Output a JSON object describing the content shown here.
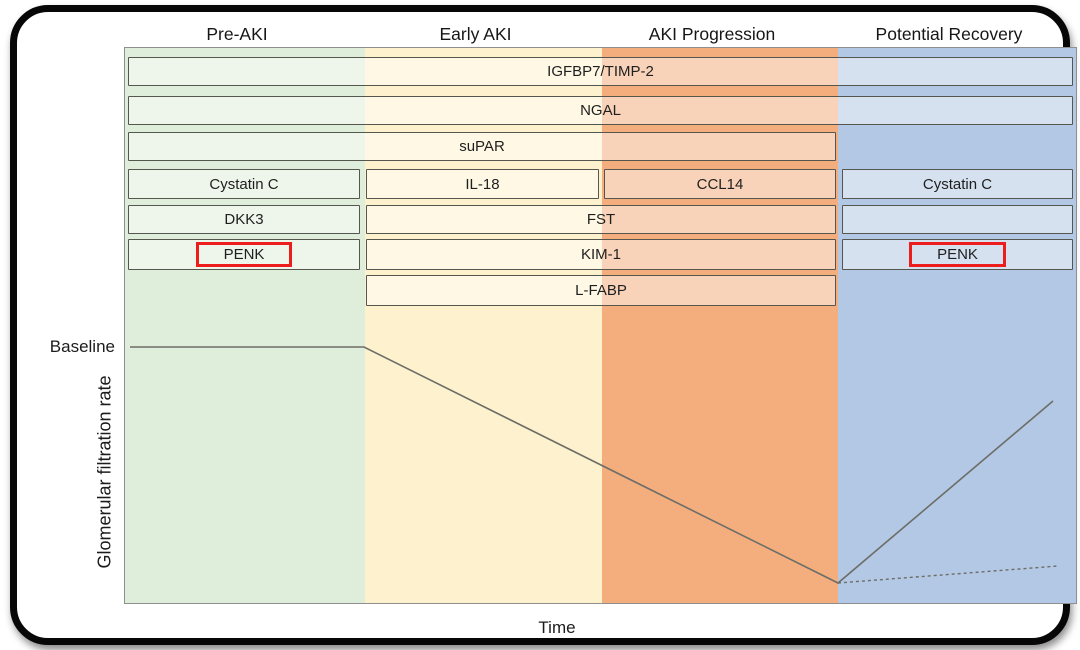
{
  "figure": {
    "phases": [
      {
        "label": "Pre-AKI",
        "color": "#dfeedb"
      },
      {
        "label": "Early AKI",
        "color": "#fdf2cd"
      },
      {
        "label": "AKI Progression",
        "color": "#f4ae7e"
      },
      {
        "label": "Potential Recovery",
        "color": "#b3c8e4"
      }
    ],
    "biomarker_rows": [
      {
        "bars": [
          {
            "label": "IGFBP7/TIMP-2",
            "from": 0,
            "to": 3
          }
        ]
      },
      {
        "bars": [
          {
            "label": "NGAL",
            "from": 0,
            "to": 3
          }
        ]
      },
      {
        "bars": [
          {
            "label": "suPAR",
            "from": 0,
            "to": 2
          }
        ]
      },
      {
        "bars": [
          {
            "label": "Cystatin C",
            "from": 0,
            "to": 0
          },
          {
            "label": "IL-18",
            "from": 1,
            "to": 1
          },
          {
            "label": "CCL14",
            "from": 2,
            "to": 2
          },
          {
            "label": "Cystatin C",
            "from": 3,
            "to": 3
          }
        ]
      },
      {
        "bars": [
          {
            "label": "DKK3",
            "from": 0,
            "to": 0
          },
          {
            "label": "FST",
            "from": 1,
            "to": 2
          },
          {
            "label": "",
            "from": 3,
            "to": 3
          }
        ]
      },
      {
        "bars": [
          {
            "label": "PENK",
            "from": 0,
            "to": 0,
            "highlight": true
          },
          {
            "label": "KIM-1",
            "from": 1,
            "to": 2
          },
          {
            "label": "PENK",
            "from": 3,
            "to": 3,
            "highlight": true
          }
        ]
      },
      {
        "bars": [
          {
            "label": "L-FABP",
            "from": 1,
            "to": 2
          }
        ]
      }
    ],
    "highlight_color": "#ee1d1d",
    "axes": {
      "baseline_label": "Baseline",
      "y_label": "Glomerular filtration rate",
      "x_label": "Time"
    },
    "gfr_line": {
      "color": "#6d6d68",
      "solid_points": [
        [
          5,
          299
        ],
        [
          239,
          299
        ],
        [
          713,
          535
        ],
        [
          928,
          353
        ]
      ],
      "dotted_points": [
        [
          713,
          535
        ],
        [
          933,
          518
        ]
      ]
    }
  }
}
